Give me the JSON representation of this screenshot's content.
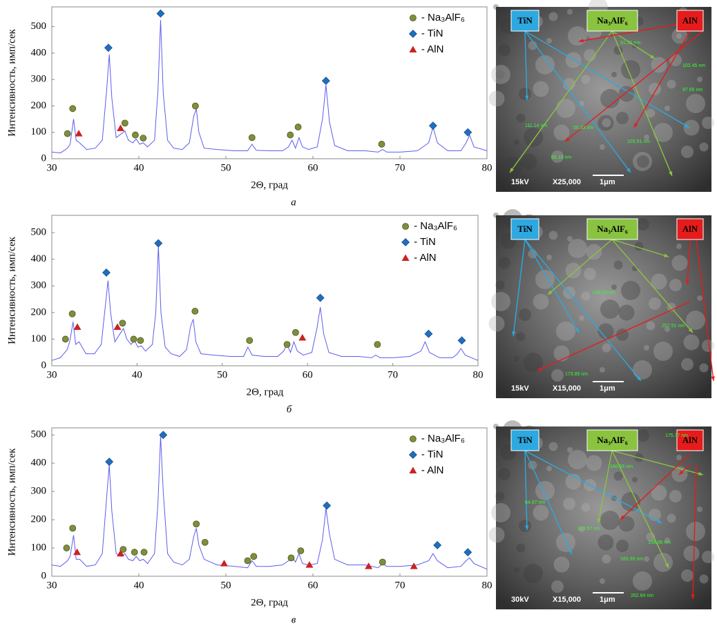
{
  "chart_data": [
    {
      "type": "line",
      "xlabel": "2Θ, град",
      "ylabel": "Интенсивность, имп/сек",
      "caption": "а",
      "xlim": [
        30,
        80
      ],
      "xticks": [
        30,
        40,
        50,
        60,
        70,
        80
      ],
      "ylim": [
        0,
        575
      ],
      "yticks": [
        0,
        100,
        200,
        300,
        400,
        500
      ],
      "legend": "top-right",
      "x": [
        30,
        31,
        31.8,
        32.1,
        32.5,
        32.8,
        33.2,
        34,
        35,
        35.8,
        36.3,
        36.6,
        36.9,
        37.4,
        38,
        38.4,
        38.8,
        39.3,
        39.7,
        40.1,
        40.5,
        41,
        41.8,
        42.2,
        42.5,
        42.8,
        43.3,
        44,
        45,
        45.8,
        46.3,
        46.6,
        46.9,
        47.5,
        49,
        51,
        52.5,
        53,
        53.5,
        55,
        56.5,
        57.2,
        57.6,
        58,
        58.4,
        58.8,
        59.5,
        60.5,
        61.1,
        61.5,
        61.9,
        62.5,
        64,
        66,
        67.5,
        68,
        68.5,
        70,
        72,
        73.3,
        73.8,
        74.3,
        75.5,
        77,
        77.6,
        78,
        78.5,
        80
      ],
      "series": [
        {
          "color": "#5b5bef",
          "values": [
            25,
            22,
            40,
            55,
            150,
            70,
            60,
            35,
            40,
            70,
            260,
            395,
            230,
            80,
            95,
            105,
            70,
            60,
            75,
            55,
            60,
            45,
            70,
            260,
            525,
            250,
            70,
            40,
            35,
            60,
            160,
            190,
            100,
            40,
            35,
            30,
            30,
            55,
            32,
            30,
            30,
            45,
            70,
            40,
            80,
            45,
            35,
            45,
            150,
            280,
            140,
            50,
            30,
            30,
            25,
            35,
            25,
            25,
            30,
            60,
            120,
            60,
            30,
            30,
            60,
            90,
            45,
            30
          ]
        },
        {
          "name": "- Na₃AlF₆",
          "color": "#7f8f3a",
          "marker": "circle",
          "x": [
            31.8,
            32.4,
            38.4,
            39.6,
            40.5,
            46.5,
            53,
            57.4,
            58.3,
            67.9
          ],
          "values": [
            95,
            190,
            135,
            90,
            78,
            200,
            80,
            90,
            120,
            55
          ]
        },
        {
          "name": "- TiN",
          "color": "#1f6fbf",
          "marker": "diamond",
          "x": [
            36.5,
            42.5,
            61.5,
            73.8,
            77.8
          ],
          "values": [
            420,
            550,
            295,
            125,
            100
          ]
        },
        {
          "name": "- AlN",
          "color": "#cc2222",
          "marker": "triangle",
          "x": [
            33.1,
            37.9
          ],
          "values": [
            95,
            115
          ]
        }
      ]
    },
    {
      "type": "line",
      "xlabel": "2Θ, град",
      "ylabel": "Интенсивность, имп/сек",
      "caption": "б",
      "xlim": [
        30,
        80
      ],
      "xticks": [
        30,
        40,
        50,
        60,
        70,
        80
      ],
      "ylim": [
        0,
        565
      ],
      "yticks": [
        0,
        100,
        200,
        300,
        400,
        500
      ],
      "legend": "top-right",
      "x": [
        30,
        31,
        31.8,
        32.1,
        32.5,
        32.8,
        33.2,
        34,
        35,
        35.8,
        36.3,
        36.6,
        36.9,
        37.4,
        38,
        38.4,
        38.8,
        39.3,
        39.7,
        40.1,
        40.5,
        41,
        41.8,
        42.2,
        42.5,
        42.8,
        43.3,
        44,
        45,
        45.8,
        46.3,
        46.6,
        46.9,
        47.5,
        49,
        51,
        52.5,
        53,
        53.5,
        55,
        56.5,
        57.2,
        57.6,
        58,
        58.4,
        58.8,
        59.5,
        60.5,
        61.1,
        61.5,
        61.9,
        62.5,
        64,
        66,
        67.5,
        68,
        68.5,
        70,
        72,
        73.3,
        73.8,
        74.3,
        75.5,
        77,
        77.6,
        78,
        78.5,
        80
      ],
      "series": [
        {
          "color": "#5b5bef",
          "values": [
            20,
            30,
            60,
            90,
            165,
            80,
            90,
            45,
            45,
            80,
            230,
            320,
            200,
            90,
            120,
            140,
            100,
            80,
            95,
            70,
            75,
            55,
            80,
            200,
            450,
            200,
            70,
            45,
            35,
            60,
            150,
            175,
            90,
            45,
            40,
            35,
            35,
            70,
            40,
            35,
            35,
            55,
            80,
            50,
            90,
            55,
            40,
            50,
            140,
            220,
            120,
            50,
            35,
            35,
            30,
            40,
            30,
            30,
            35,
            55,
            90,
            50,
            30,
            30,
            45,
            65,
            40,
            20
          ]
        },
        {
          "name": "- Na₃AlF₆",
          "color": "#7f8f3a",
          "marker": "circle",
          "x": [
            31.6,
            32.4,
            38.3,
            39.6,
            40.4,
            46.8,
            53.2,
            57.6,
            58.6,
            68.2
          ],
          "values": [
            100,
            195,
            160,
            100,
            95,
            205,
            95,
            80,
            125,
            80
          ]
        },
        {
          "name": "- TiN",
          "color": "#1f6fbf",
          "marker": "diamond",
          "x": [
            36.4,
            42.5,
            61.5,
            74.2,
            78.1
          ],
          "values": [
            350,
            460,
            255,
            120,
            95
          ]
        },
        {
          "name": "- AlN",
          "color": "#cc2222",
          "marker": "triangle",
          "x": [
            33.0,
            37.7,
            59.4
          ],
          "values": [
            145,
            145,
            105
          ]
        }
      ]
    },
    {
      "type": "line",
      "xlabel": "2Θ, град",
      "ylabel": "Интенсивность, имп/сек",
      "caption": "в",
      "xlim": [
        30,
        80
      ],
      "xticks": [
        30,
        40,
        50,
        60,
        70,
        80
      ],
      "ylim": [
        0,
        525
      ],
      "yticks": [
        0,
        100,
        200,
        300,
        400,
        500
      ],
      "legend": "top-right",
      "x": [
        30,
        31,
        31.8,
        32.1,
        32.5,
        32.8,
        33.2,
        34,
        35,
        35.8,
        36.3,
        36.6,
        36.9,
        37.4,
        38,
        38.4,
        38.8,
        39.3,
        39.7,
        40.1,
        40.5,
        41,
        41.8,
        42.2,
        42.5,
        42.8,
        43.3,
        44,
        45,
        45.8,
        46.3,
        46.6,
        46.9,
        47.5,
        49,
        51,
        52.5,
        53,
        53.5,
        55,
        56.5,
        57.2,
        57.6,
        58,
        58.4,
        58.8,
        59.5,
        60.5,
        61.1,
        61.5,
        61.9,
        62.5,
        64,
        66,
        67.5,
        68,
        68.5,
        70,
        72,
        73.3,
        73.8,
        74.3,
        75.5,
        77,
        77.6,
        78,
        78.5,
        80
      ],
      "series": [
        {
          "color": "#5b5bef",
          "values": [
            40,
            35,
            55,
            70,
            145,
            60,
            60,
            35,
            40,
            80,
            280,
            395,
            230,
            80,
            70,
            80,
            60,
            55,
            70,
            55,
            60,
            45,
            80,
            260,
            495,
            300,
            80,
            50,
            40,
            60,
            140,
            170,
            110,
            60,
            40,
            35,
            30,
            55,
            35,
            35,
            40,
            55,
            70,
            50,
            80,
            45,
            40,
            45,
            130,
            240,
            150,
            60,
            40,
            40,
            30,
            45,
            35,
            35,
            40,
            55,
            80,
            55,
            30,
            35,
            55,
            65,
            45,
            25
          ]
        },
        {
          "name": "- Na₃AlF₆",
          "color": "#7f8f3a",
          "marker": "circle",
          "x": [
            31.7,
            32.4,
            38.2,
            39.5,
            40.6,
            46.6,
            47.6,
            52.5,
            53.2,
            57.5,
            58.6,
            68
          ],
          "values": [
            100,
            170,
            95,
            85,
            85,
            185,
            120,
            55,
            70,
            65,
            90,
            50
          ]
        },
        {
          "name": "- TiN",
          "color": "#1f6fbf",
          "marker": "diamond",
          "x": [
            36.6,
            42.8,
            61.6,
            74.3,
            77.8
          ],
          "values": [
            405,
            500,
            250,
            110,
            85
          ]
        },
        {
          "name": "- AlN",
          "color": "#cc2222",
          "marker": "triangle",
          "x": [
            32.9,
            37.9,
            49.8,
            59.6,
            66.4,
            71.6
          ],
          "values": [
            85,
            80,
            45,
            40,
            35,
            35
          ]
        }
      ]
    }
  ],
  "sem_images": [
    {
      "labels": [
        "TiN",
        "Na₃AlF₆",
        "AlN"
      ],
      "voltage": "15kV",
      "magnification": "X25,000",
      "scale": "1μm",
      "measurements": [
        "91.21 nm",
        "102.45 nm",
        "97.65 nm",
        "111.14 nm",
        "55.33 nm",
        "86.16 nm",
        "103.51 nm"
      ]
    },
    {
      "labels": [
        "TiN",
        "Na₃AlF₆",
        "AlN"
      ],
      "voltage": "15kV",
      "magnification": "X15,000",
      "scale": "1μm",
      "measurements": [
        "139.20 nm",
        "257.51 nm",
        "173.85 nm"
      ]
    },
    {
      "labels": [
        "TiN",
        "Na₃AlF₆",
        "AlN"
      ],
      "voltage": "30kV",
      "magnification": "X15,000",
      "scale": "1μm",
      "measurements": [
        "175.37 nm",
        "160.55 nm",
        "64.67 nm",
        "173.57 nm",
        "156.06 nm",
        "183.35 nm",
        "262.64 nm"
      ]
    }
  ]
}
